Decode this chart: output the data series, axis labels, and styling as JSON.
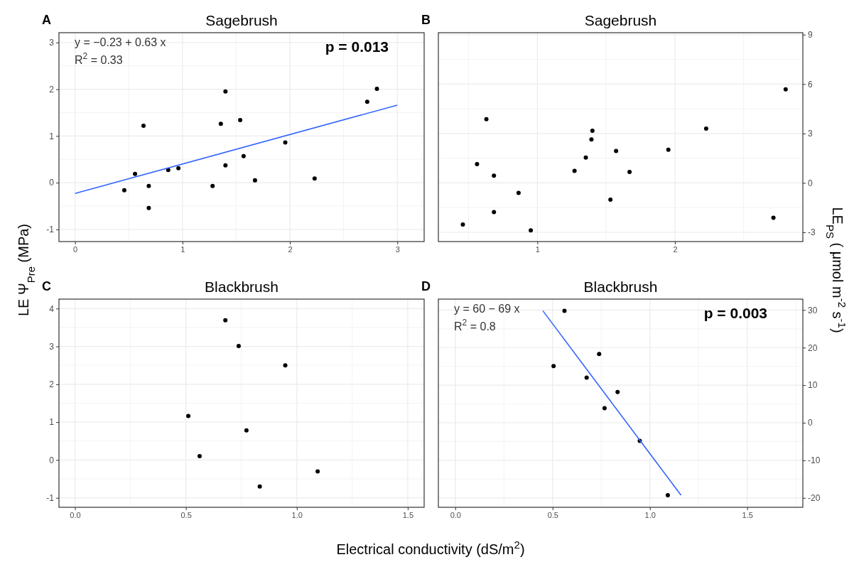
{
  "chart_data": [
    {
      "type": "scatter",
      "title": "Sagebrush",
      "ylabel": "LE Ψ$_{Pre}$ (MPa)",
      "annotations": [
        "A",
        "y = −0.23 + 0.63 x",
        "R$^{2}$ = 0.33",
        "p = 0.013"
      ],
      "xlim": [
        -0.15,
        3.25
      ],
      "ylim": [
        -1.26,
        3.21
      ],
      "xticks": [
        0,
        1,
        2,
        3
      ],
      "yticks": [
        -1,
        0,
        1,
        2,
        3
      ],
      "grid": true,
      "marker": "circle",
      "series": [
        {
          "color": "#000000",
          "x": [
            0.458,
            0.558,
            0.637,
            0.686,
            0.686,
            0.867,
            0.962,
            1.28,
            1.357,
            1.4,
            1.4,
            1.537,
            1.569,
            1.675,
            1.957,
            2.23,
            2.72,
            2.81
          ],
          "values": [
            -0.16,
            0.19,
            1.22,
            -0.07,
            -0.54,
            0.27,
            0.31,
            -0.07,
            1.26,
            1.95,
            0.37,
            1.34,
            0.57,
            0.05,
            0.86,
            0.09,
            1.73,
            2.01
          ]
        },
        {
          "type": "line",
          "marker": "none",
          "color": "#3366ff",
          "x": [
            0,
            3
          ],
          "values": [
            -0.23,
            1.66
          ]
        }
      ]
    },
    {
      "type": "scatter",
      "title": "Sagebrush",
      "y2label": "LE$_{PS}$ ( μmol m$^{-2}$ s$^{-1}$)",
      "annotations": [
        "B"
      ],
      "xlim": [
        0.28,
        2.93
      ],
      "y2lim": [
        -3.56,
        9.12
      ],
      "xticks": [
        1,
        2
      ],
      "y2ticks": [
        -3,
        0,
        3,
        6,
        9
      ],
      "grid": true,
      "marker": "circle",
      "series": [
        {
          "axis": "y2",
          "color": "#000000",
          "x": [
            0.458,
            0.561,
            0.629,
            0.684,
            0.684,
            0.863,
            0.952,
            1.27,
            1.352,
            1.393,
            1.4,
            1.531,
            1.572,
            1.67,
            1.952,
            2.227,
            2.716,
            2.805
          ],
          "values": [
            -2.53,
            1.14,
            3.87,
            0.44,
            -1.77,
            -0.61,
            -2.88,
            0.73,
            1.54,
            2.64,
            3.17,
            -1.01,
            1.94,
            0.67,
            2.01,
            3.3,
            -2.12,
            5.68
          ]
        }
      ]
    },
    {
      "type": "scatter",
      "title": "Blackbrush",
      "xlabel": "Electrical conductivity (dS/m$^{2}$)",
      "annotations": [
        "C"
      ],
      "xlim": [
        -0.072,
        1.574
      ],
      "ylim": [
        -1.25,
        4.25
      ],
      "xticks": [
        {
          "value": 0,
          "label": "0.0"
        },
        {
          "value": 0.5,
          "label": "0.5"
        },
        {
          "value": 1,
          "label": "1.0"
        },
        {
          "value": 1.5,
          "label": "1.5"
        }
      ],
      "yticks": [
        -1,
        0,
        1,
        2,
        3,
        4
      ],
      "grid": true,
      "marker": "circle",
      "series": [
        {
          "color": "#000000",
          "x": [
            0.678,
            0.738,
            0.948,
            0.511,
            0.773,
            0.562,
            1.094,
            0.833
          ],
          "values": [
            3.69,
            3.01,
            2.5,
            1.16,
            0.78,
            0.1,
            -0.3,
            -0.7
          ]
        }
      ]
    },
    {
      "type": "scatter",
      "title": "Blackbrush",
      "annotations": [
        "D",
        "y = 60 − 69 x",
        "R$^{2}$ = 0.8",
        "p = 0.003"
      ],
      "xlim": [
        -0.087,
        1.786
      ],
      "y2lim": [
        -22.5,
        32.9
      ],
      "xticks": [
        {
          "value": 0,
          "label": "0.0"
        },
        {
          "value": 0.5,
          "label": "0.5"
        },
        {
          "value": 1,
          "label": "1.0"
        },
        {
          "value": 1.5,
          "label": "1.5"
        }
      ],
      "y2ticks": [
        -20,
        -10,
        0,
        10,
        20,
        30
      ],
      "grid": true,
      "marker": "circle",
      "series": [
        {
          "axis": "y2",
          "color": "#000000",
          "x": [
            0.561,
            0.505,
            0.739,
            0.675,
            0.834,
            0.767,
            0.948,
            1.092
          ],
          "values": [
            29.8,
            15.1,
            18.3,
            12.0,
            8.2,
            3.9,
            -4.8,
            -19.3
          ]
        },
        {
          "type": "line",
          "marker": "none",
          "axis": "y2",
          "color": "#3366ff",
          "x": [
            0.45,
            1.16
          ],
          "values": [
            29.8,
            -19.3
          ]
        }
      ]
    }
  ]
}
